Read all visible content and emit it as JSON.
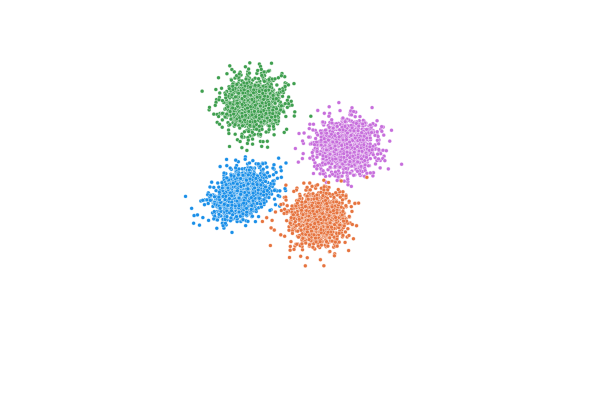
{
  "chart_data": {
    "type": "scatter",
    "title": "",
    "xlabel": "",
    "ylabel": "",
    "axes_visible": false,
    "grid": false,
    "legend": "none",
    "xlim": [
      -9,
      9
    ],
    "ylim": [
      -9,
      9
    ],
    "series": [
      {
        "color": "#3f9f4f",
        "center": [
          -2.8,
          5.6
        ],
        "sd": [
          0.85,
          0.85
        ],
        "n": 1200
      },
      {
        "color": "#c76fdc",
        "center": [
          2.8,
          3.0
        ],
        "sd": [
          0.95,
          0.85
        ],
        "n": 1200
      },
      {
        "color": "#1a8fe8",
        "center": [
          -3.5,
          0.1
        ],
        "sd": [
          0.85,
          0.75
        ],
        "n": 1200,
        "tilt": 0.3
      },
      {
        "color": "#e6743f",
        "center": [
          1.1,
          -1.5
        ],
        "sd": [
          0.85,
          0.85
        ],
        "n": 1200
      }
    ]
  }
}
